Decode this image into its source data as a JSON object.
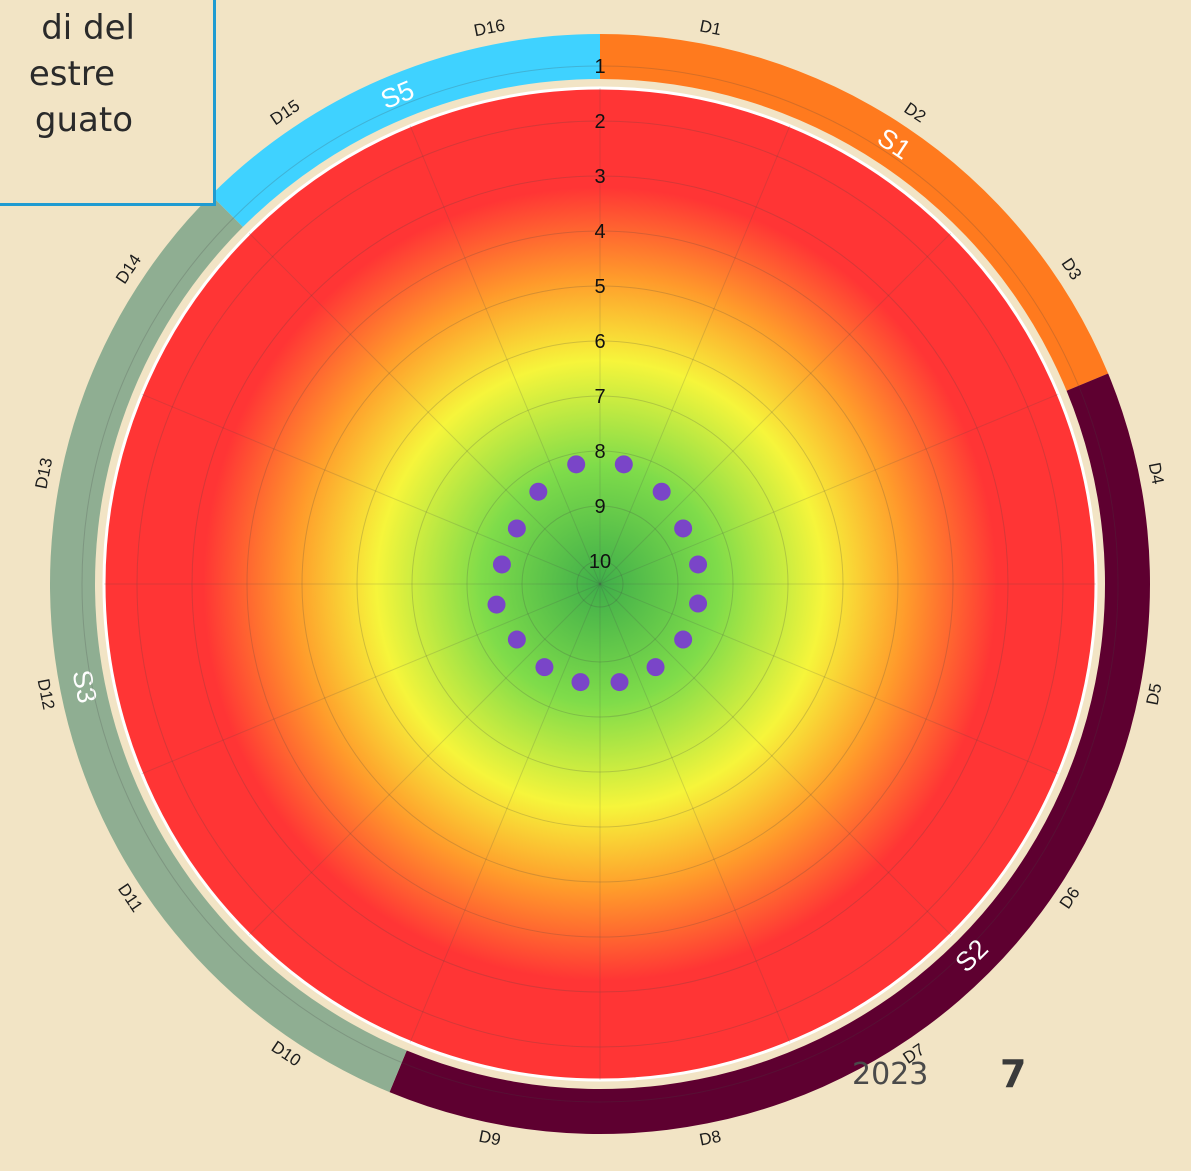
{
  "note": {
    "lines": [
      "di del",
      "estre",
      "guato"
    ]
  },
  "footer": {
    "date_text": "2023",
    "page_number": "7"
  },
  "chart_data": {
    "type": "radial-heatmap-scatter",
    "title": "",
    "radial_axis": {
      "min": 1,
      "max": 10,
      "inverted": true,
      "ticks": [
        "1",
        "2",
        "3",
        "4",
        "5",
        "6",
        "7",
        "8",
        "9",
        "10"
      ]
    },
    "gradient_colors": {
      "outer": "#ff3535",
      "orange": "#ff9a2b",
      "yellow": "#f6f53b",
      "green_light": "#7fdc4a",
      "green_center": "#3fae4a"
    },
    "dimensions": [
      "D1",
      "D2",
      "D3",
      "D4",
      "D5",
      "D6",
      "D7",
      "D8",
      "D9",
      "D10",
      "D11",
      "D12",
      "D13",
      "D14",
      "D15",
      "D16"
    ],
    "sections": [
      {
        "name": "S1",
        "dimensions": [
          "D1",
          "D2",
          "D3"
        ],
        "color": "#ff7a1e"
      },
      {
        "name": "S2",
        "dimensions": [
          "D4",
          "D5",
          "D6",
          "D7",
          "D8",
          "D9"
        ],
        "color": "#5e0030"
      },
      {
        "name": "S3",
        "dimensions": [
          "D10",
          "D11",
          "D12",
          "D13",
          "D14"
        ],
        "color": "#8fae92"
      },
      {
        "name": "S5",
        "dimensions": [
          "D15",
          "D16"
        ],
        "color": "#3fd2ff"
      }
    ],
    "series": [
      {
        "values": [
          8.2,
          8.4,
          8.6,
          8.6,
          8.6,
          8.6,
          8.6,
          8.6,
          8.6,
          8.6,
          8.6,
          8.5,
          8.6,
          8.6,
          8.4,
          8.2
        ],
        "color": "#7a45c8"
      }
    ]
  }
}
